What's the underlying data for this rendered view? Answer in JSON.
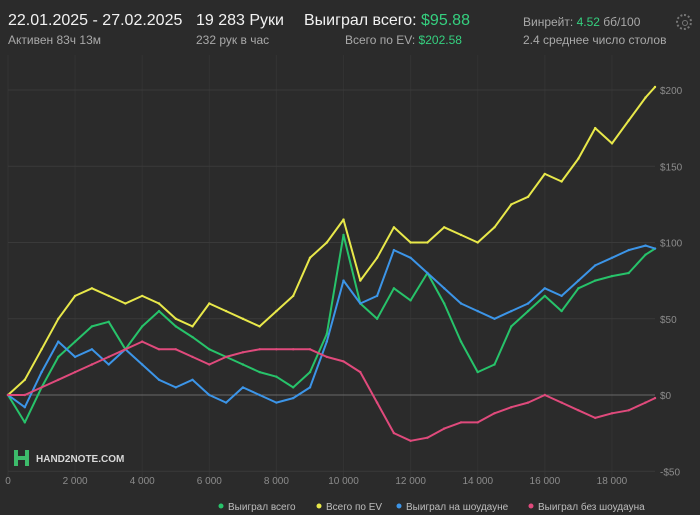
{
  "header": {
    "date_range": "22.01.2025 - 27.02.2025",
    "active": "Активен 83ч 13м",
    "hands": "19 283 Руки",
    "hands_per_hour": "232 рук в час",
    "won_total_label": "Выиграл всего:",
    "won_total_value": "$95.88",
    "ev_total_label": "Всего по EV:",
    "ev_total_value": "$202.58",
    "winrate_label": "Винрейт:",
    "winrate_value": "4.52",
    "winrate_unit": "бб/100",
    "avg_tables": "2.4 среднее число столов"
  },
  "logo": "HAND2NOTE.COM",
  "colors": {
    "won_total": "#27c36a",
    "ev_total": "#e8e84a",
    "showdown": "#3c95e8",
    "non_showdown": "#e04a7c",
    "accent_text": "#35d07f"
  },
  "chart_data": {
    "type": "line",
    "xlim": [
      0,
      19283
    ],
    "ylim": [
      -50,
      200
    ],
    "x_ticks": [
      0,
      2000,
      4000,
      6000,
      8000,
      10000,
      12000,
      14000,
      16000,
      18000
    ],
    "x_tick_labels": [
      "0",
      "2 000",
      "4 000",
      "6 000",
      "8 000",
      "10 000",
      "12 000",
      "14 000",
      "16 000",
      "18 000"
    ],
    "y_ticks": [
      200,
      150,
      100,
      50,
      0,
      -50
    ],
    "y_tick_labels": [
      "$200",
      "$150",
      "$100",
      "$50",
      "$0",
      "-$50"
    ],
    "grid": true,
    "legend_position": "bottom-right",
    "series": [
      {
        "name": "Выиграл всего",
        "color": "#27c36a",
        "x": [
          0,
          500,
          1000,
          1500,
          2000,
          2500,
          3000,
          3500,
          4000,
          4500,
          5000,
          5500,
          6000,
          6500,
          7000,
          7500,
          8000,
          8500,
          9000,
          9500,
          10000,
          10500,
          11000,
          11500,
          12000,
          12500,
          13000,
          13500,
          14000,
          14500,
          15000,
          15500,
          16000,
          16500,
          17000,
          17500,
          18000,
          18500,
          19000,
          19283
        ],
        "values": [
          0,
          -18,
          5,
          25,
          35,
          45,
          48,
          30,
          45,
          55,
          45,
          38,
          30,
          25,
          20,
          15,
          12,
          5,
          15,
          40,
          105,
          60,
          50,
          70,
          62,
          80,
          60,
          35,
          15,
          20,
          45,
          55,
          65,
          55,
          70,
          75,
          78,
          80,
          92,
          96
        ]
      },
      {
        "name": "Всего по EV",
        "color": "#e8e84a",
        "x": [
          0,
          500,
          1000,
          1500,
          2000,
          2500,
          3000,
          3500,
          4000,
          4500,
          5000,
          5500,
          6000,
          6500,
          7000,
          7500,
          8000,
          8500,
          9000,
          9500,
          10000,
          10500,
          11000,
          11500,
          12000,
          12500,
          13000,
          13500,
          14000,
          14500,
          15000,
          15500,
          16000,
          16500,
          17000,
          17500,
          18000,
          18500,
          19000,
          19283
        ],
        "values": [
          0,
          10,
          30,
          50,
          65,
          70,
          65,
          60,
          65,
          60,
          50,
          45,
          60,
          55,
          50,
          45,
          55,
          65,
          90,
          100,
          115,
          75,
          90,
          110,
          100,
          100,
          110,
          105,
          100,
          110,
          125,
          130,
          145,
          140,
          155,
          175,
          165,
          180,
          195,
          202
        ]
      },
      {
        "name": "Выиграл на шоудауне",
        "color": "#3c95e8",
        "x": [
          0,
          500,
          1000,
          1500,
          2000,
          2500,
          3000,
          3500,
          4000,
          4500,
          5000,
          5500,
          6000,
          6500,
          7000,
          7500,
          8000,
          8500,
          9000,
          9500,
          10000,
          10500,
          11000,
          11500,
          12000,
          12500,
          13000,
          13500,
          14000,
          14500,
          15000,
          15500,
          16000,
          16500,
          17000,
          17500,
          18000,
          18500,
          19000,
          19283
        ],
        "values": [
          0,
          -8,
          15,
          35,
          25,
          30,
          20,
          30,
          20,
          10,
          5,
          10,
          0,
          -5,
          5,
          0,
          -5,
          -2,
          5,
          35,
          75,
          60,
          65,
          95,
          90,
          80,
          70,
          60,
          55,
          50,
          55,
          60,
          70,
          65,
          75,
          85,
          90,
          95,
          98,
          96
        ]
      },
      {
        "name": "Выиграл без шоудауна",
        "color": "#e04a7c",
        "x": [
          0,
          500,
          1000,
          1500,
          2000,
          2500,
          3000,
          3500,
          4000,
          4500,
          5000,
          5500,
          6000,
          6500,
          7000,
          7500,
          8000,
          8500,
          9000,
          9500,
          10000,
          10500,
          11000,
          11500,
          12000,
          12500,
          13000,
          13500,
          14000,
          14500,
          15000,
          15500,
          16000,
          16500,
          17000,
          17500,
          18000,
          18500,
          19000,
          19283
        ],
        "values": [
          0,
          0,
          5,
          10,
          15,
          20,
          25,
          30,
          35,
          30,
          30,
          25,
          20,
          25,
          28,
          30,
          30,
          30,
          30,
          25,
          22,
          15,
          -5,
          -25,
          -30,
          -28,
          -22,
          -18,
          -18,
          -12,
          -8,
          -5,
          0,
          -5,
          -10,
          -15,
          -12,
          -10,
          -5,
          -2
        ]
      }
    ]
  }
}
